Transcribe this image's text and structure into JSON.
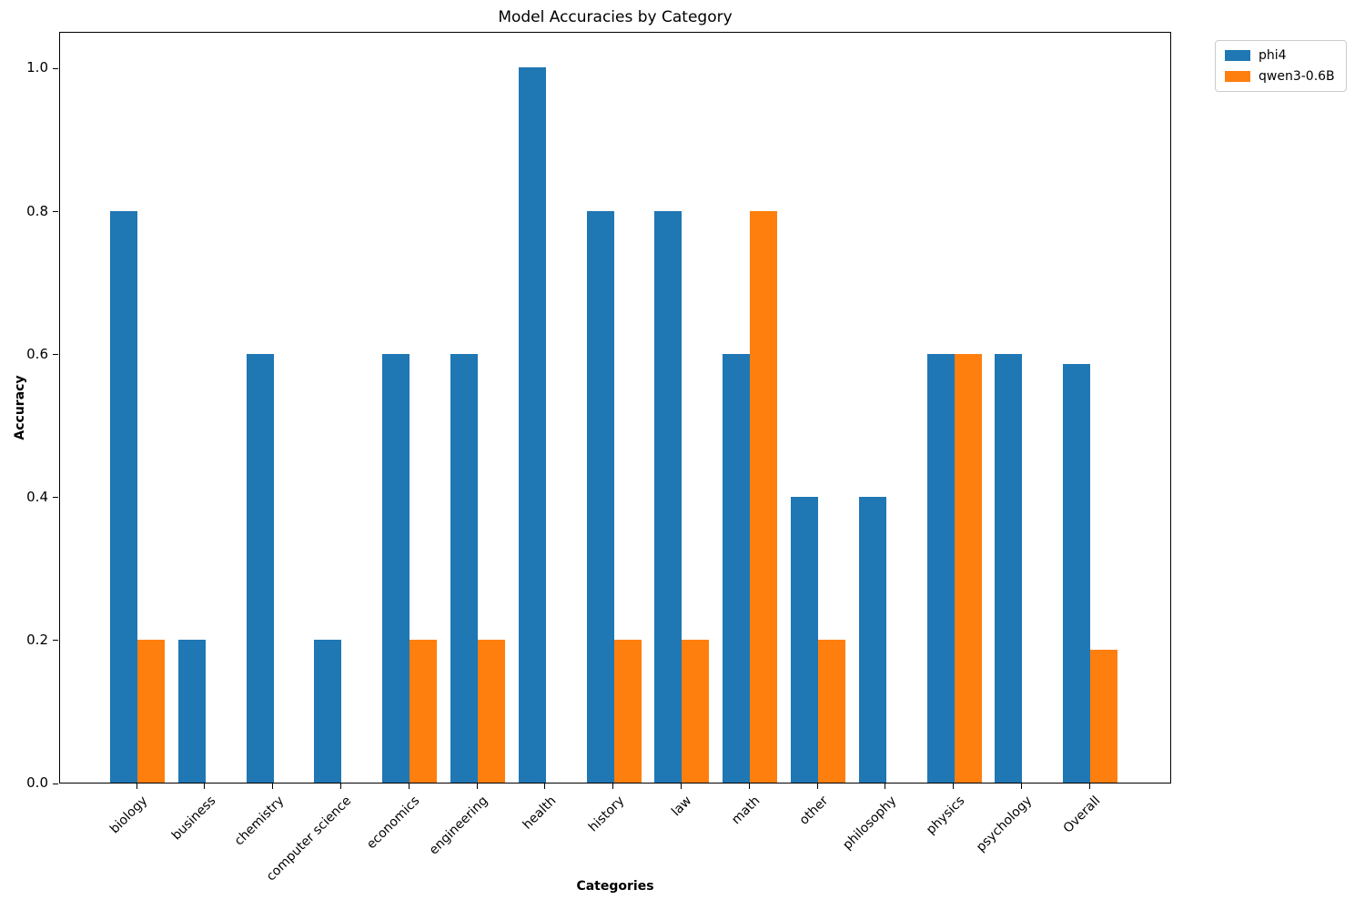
{
  "chart_data": {
    "type": "bar",
    "title": "Model Accuracies by Category",
    "xlabel": "Categories",
    "ylabel": "Accuracy",
    "categories": [
      "biology",
      "business",
      "chemistry",
      "computer science",
      "economics",
      "engineering",
      "health",
      "history",
      "law",
      "math",
      "other",
      "philosophy",
      "physics",
      "psychology",
      "Overall"
    ],
    "series": [
      {
        "name": "phi4",
        "color": "#1f77b4",
        "values": [
          0.8,
          0.2,
          0.6,
          0.2,
          0.6,
          0.6,
          1.0,
          0.8,
          0.8,
          0.6,
          0.4,
          0.4,
          0.6,
          0.6,
          0.586
        ]
      },
      {
        "name": "qwen3-0.6B",
        "color": "#ff7f0e",
        "values": [
          0.2,
          0.0,
          0.0,
          0.0,
          0.2,
          0.2,
          0.0,
          0.2,
          0.2,
          0.8,
          0.2,
          0.0,
          0.6,
          0.0,
          0.186
        ]
      }
    ],
    "ylim": [
      0.0,
      1.05
    ],
    "yticks": [
      "0.0",
      "0.2",
      "0.4",
      "0.6",
      "0.8",
      "1.0"
    ],
    "grid": "off",
    "legend_position": "outside-upper-right",
    "bar_gap_within_group": 0,
    "background_color": "#ffffff",
    "spine_color": "#000000"
  }
}
